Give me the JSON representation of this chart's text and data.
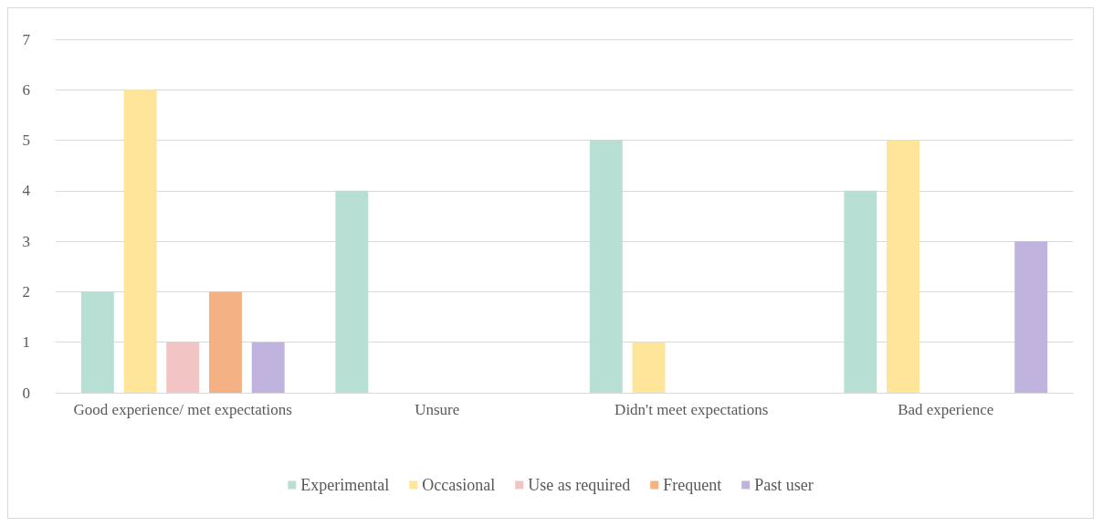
{
  "chart_data": {
    "type": "bar",
    "categories": [
      "Good experience/ met expectations",
      "Unsure",
      "Didn't meet expectations",
      "Bad experience"
    ],
    "series": [
      {
        "name": "Experimental",
        "color": "#b8dfd3",
        "values": [
          2,
          4,
          5,
          4
        ]
      },
      {
        "name": "Occasional",
        "color": "#fee599",
        "values": [
          6,
          0,
          1,
          5
        ]
      },
      {
        "name": "Use as required",
        "color": "#f2c4c4",
        "values": [
          1,
          0,
          0,
          0
        ]
      },
      {
        "name": "Frequent",
        "color": "#f4b183",
        "values": [
          2,
          0,
          0,
          0
        ]
      },
      {
        "name": "Past user",
        "color": "#c0b4de",
        "values": [
          1,
          0,
          0,
          3
        ]
      }
    ],
    "ylim": [
      0,
      7
    ],
    "yticks": [
      0,
      1,
      2,
      3,
      4,
      5,
      6,
      7
    ],
    "grid": "y",
    "legend": "bottom"
  }
}
